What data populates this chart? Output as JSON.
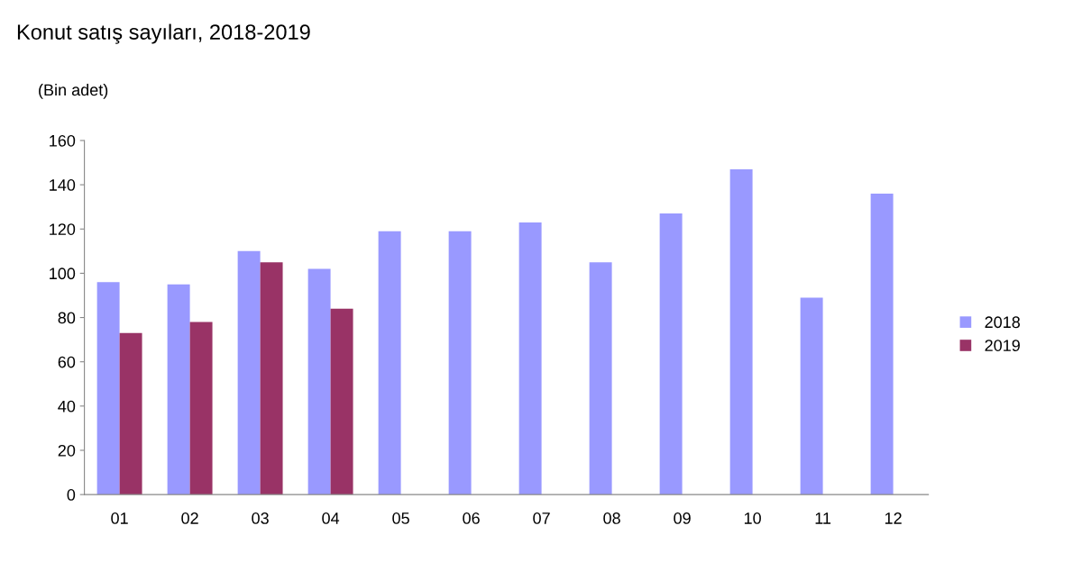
{
  "chart_data": {
    "type": "bar",
    "title": "Konut satış sayıları, 2018-2019",
    "ylabel": "(Bin adet)",
    "categories": [
      "01",
      "02",
      "03",
      "04",
      "05",
      "06",
      "07",
      "08",
      "09",
      "10",
      "11",
      "12"
    ],
    "series": [
      {
        "name": "2018",
        "color": "#9999ff",
        "values": [
          96,
          95,
          110,
          102,
          119,
          119,
          123,
          105,
          127,
          147,
          89,
          136
        ]
      },
      {
        "name": "2019",
        "color": "#993366",
        "values": [
          73,
          78,
          105,
          84,
          null,
          null,
          null,
          null,
          null,
          null,
          null,
          null
        ]
      }
    ],
    "ylim": [
      0,
      160
    ],
    "yticks": [
      0,
      20,
      40,
      60,
      80,
      100,
      120,
      140,
      160
    ],
    "grid": false,
    "legend": "right"
  }
}
